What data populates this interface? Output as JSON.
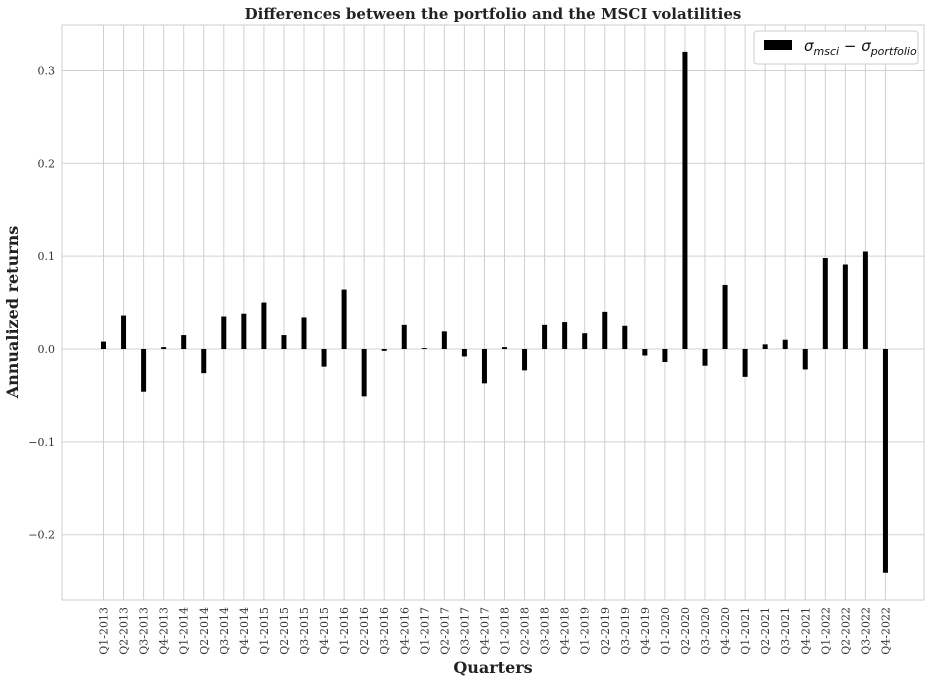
{
  "chart_data": {
    "type": "bar",
    "title": "Differences between the portfolio and the MSCI volatilities",
    "xlabel": "Quarters",
    "ylabel": "Annualized returns",
    "ylim": [
      -0.27,
      0.35
    ],
    "yticks": [
      -0.2,
      -0.1,
      0.0,
      0.1,
      0.2,
      0.3
    ],
    "ytick_labels": [
      "−0.2",
      "−0.1",
      "0.0",
      "0.1",
      "0.2",
      "0.3"
    ],
    "grid": true,
    "legend_position": "top-right",
    "bar_color": "#000000",
    "categories": [
      "Q1-2013",
      "Q2-2013",
      "Q3-2013",
      "Q4-2013",
      "Q1-2014",
      "Q2-2014",
      "Q3-2014",
      "Q4-2014",
      "Q1-2015",
      "Q2-2015",
      "Q3-2015",
      "Q4-2015",
      "Q1-2016",
      "Q2-2016",
      "Q3-2016",
      "Q4-2016",
      "Q1-2017",
      "Q2-2017",
      "Q3-2017",
      "Q4-2017",
      "Q1-2018",
      "Q2-2018",
      "Q3-2018",
      "Q4-2018",
      "Q1-2019",
      "Q2-2019",
      "Q3-2019",
      "Q4-2019",
      "Q1-2020",
      "Q2-2020",
      "Q3-2020",
      "Q4-2020",
      "Q1-2021",
      "Q2-2021",
      "Q3-2021",
      "Q4-2021",
      "Q1-2022",
      "Q2-2022",
      "Q3-2022",
      "Q4-2022"
    ],
    "series": [
      {
        "name": "σmsci − σportfolio",
        "values": [
          0.008,
          0.036,
          -0.046,
          0.002,
          0.015,
          -0.026,
          0.035,
          0.038,
          0.05,
          0.015,
          0.034,
          -0.019,
          0.064,
          -0.051,
          -0.002,
          0.026,
          0.001,
          0.019,
          -0.008,
          -0.037,
          0.002,
          -0.023,
          0.026,
          0.029,
          0.017,
          0.04,
          0.025,
          -0.007,
          -0.014,
          0.32,
          -0.018,
          0.069,
          -0.03,
          0.005,
          0.01,
          -0.022,
          0.098,
          0.091,
          0.105,
          -0.241
        ]
      }
    ]
  }
}
